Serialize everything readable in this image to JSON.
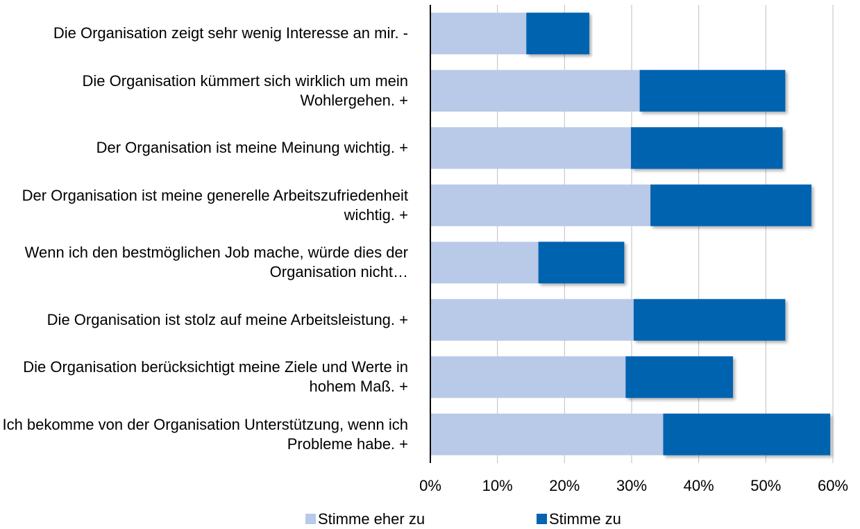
{
  "chart_data": {
    "type": "stacked_barh",
    "categories": [
      "Die Organisation zeigt sehr wenig Interesse an mir. -",
      "Die Organisation kümmert sich wirklich um mein Wohlergehen. +",
      "Der Organisation ist meine Meinung wichtig. +",
      "Der Organisation ist meine generelle Arbeitszufriedenheit wichtig. +",
      "Wenn ich den bestmöglichen Job mache, würde dies der Organisation nicht…",
      "Die Organisation ist stolz auf meine Arbeitsleistung. +",
      "Die Organisation berücksichtigt meine Ziele und Werte in hohem Maß. +",
      "Ich bekomme von der Organisation Unterstützung, wenn ich Probleme habe. +"
    ],
    "series": [
      {
        "name": "Stimme eher zu",
        "color": "#b9c9e8",
        "values": [
          14.3,
          31.2,
          29.9,
          32.8,
          16.1,
          30.3,
          29.1,
          34.7
        ]
      },
      {
        "name": "Stimme zu",
        "color": "#0563b0",
        "values": [
          9.4,
          21.7,
          22.6,
          24.0,
          12.8,
          22.6,
          16.0,
          24.9
        ]
      }
    ],
    "xlim": [
      0,
      60
    ],
    "xticks": [
      {
        "value": 0,
        "label": "0%"
      },
      {
        "value": 10,
        "label": "10%"
      },
      {
        "value": 20,
        "label": "20%"
      },
      {
        "value": 30,
        "label": "30%"
      },
      {
        "value": 40,
        "label": "40%"
      },
      {
        "value": 50,
        "label": "50%"
      },
      {
        "value": 60,
        "label": "60%"
      }
    ],
    "grid": true,
    "legend": "bottom"
  }
}
